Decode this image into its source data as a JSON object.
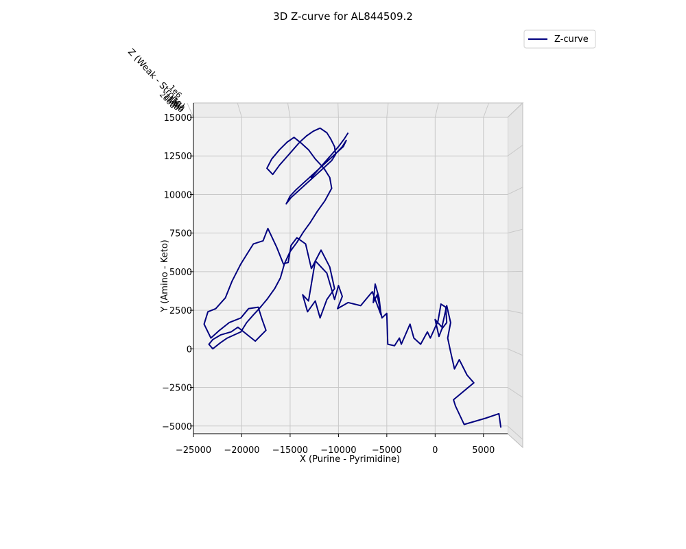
{
  "chart_data": {
    "type": "line",
    "title": "3D Z-curve for AL844509.2",
    "xlabel": "X (Purine - Pyrimidine)",
    "ylabel": "Y (Amino - Keto)",
    "zlabel": "Z (Weak - Strong)",
    "xlim": [
      -25000,
      7500
    ],
    "ylim": [
      -5500,
      15000
    ],
    "x_ticks": [
      -25000,
      -20000,
      -15000,
      -10000,
      -5000,
      0,
      5000
    ],
    "x_tick_labels": [
      "−25000",
      "−20000",
      "−15000",
      "−10000",
      "−5000",
      "0",
      "5000"
    ],
    "y_ticks": [
      -5000,
      -2500,
      0,
      2500,
      5000,
      7500,
      10000,
      12500,
      15000
    ],
    "y_tick_labels": [
      "−5000",
      "−2500",
      "0",
      "2500",
      "5000",
      "7500",
      "10000",
      "12500",
      "15000"
    ],
    "grid": true,
    "legend_position": "top-right",
    "series": [
      {
        "name": "Z-curve",
        "color": "#00007f",
        "x": [
          6800,
          6600,
          5200,
          3000,
          2100,
          1900,
          4000,
          3300,
          2500,
          2000,
          1600,
          1300,
          1600,
          1200,
          700,
          0,
          400,
          700,
          1200,
          1100,
          600,
          300,
          -500,
          -800,
          -1500,
          -2200,
          -2600,
          -3500,
          -3700,
          -4200,
          -4900,
          -5000,
          -5500,
          -6000,
          -6400,
          -6200,
          -5800,
          -5600,
          -6500,
          -7700,
          -9000,
          -10100,
          -9600,
          -10000,
          -10400,
          -11200,
          -12400,
          -13100,
          -13700,
          -13200,
          -12400,
          -11900,
          -11200,
          -10400,
          -10900,
          -11800,
          -12800,
          -13400,
          -14300,
          -14900,
          -15200,
          -15700,
          -16400,
          -17300,
          -17800,
          -18800,
          -19400,
          -20100,
          -21000,
          -21700,
          -22700,
          -23500,
          -23900,
          -23200,
          -22300,
          -21300,
          -20100,
          -19300,
          -18300,
          -17900,
          -17500,
          -18600,
          -19400,
          -20400,
          -21100,
          -22200,
          -23000,
          -23400,
          -23000,
          -22200,
          -21500,
          -20100,
          -19500,
          -18800,
          -18200,
          -17400,
          -16600,
          -16000,
          -15600,
          -15000,
          -14300,
          -13600,
          -12900,
          -12200,
          -11400,
          -10700,
          -10900,
          -11500,
          -12400,
          -13100,
          -13800,
          -14600,
          -15300,
          -16100,
          -16900,
          -17400,
          -16800,
          -16100,
          -15400,
          -14700,
          -14000,
          -13300,
          -12600,
          -11900,
          -11200,
          -10800,
          -10400,
          -10300,
          -10700,
          -11400,
          -12100,
          -12800,
          -13500,
          -14200,
          -14900,
          -15400,
          -15000,
          -14400,
          -13700,
          -13000,
          -12300,
          -11600,
          -10900,
          -10200,
          -9600,
          -9200,
          -9500,
          -10200,
          -10900,
          -11600,
          -12300,
          -12800,
          -12100,
          -11400,
          -10700,
          -10000,
          -9400,
          -9000
        ],
        "y": [
          -5100,
          -4200,
          -4500,
          -4900,
          -3700,
          -3300,
          -2200,
          -1700,
          -700,
          -1300,
          -200,
          700,
          1700,
          2800,
          1400,
          1900,
          800,
          1300,
          1700,
          2700,
          2900,
          1800,
          700,
          1100,
          300,
          700,
          1600,
          300,
          700,
          200,
          300,
          2300,
          2000,
          3500,
          3000,
          4200,
          3300,
          2200,
          3700,
          2800,
          3000,
          2600,
          3400,
          4100,
          3200,
          4900,
          5700,
          3100,
          3500,
          2400,
          3100,
          2000,
          3200,
          3900,
          5300,
          6400,
          5200,
          6800,
          7200,
          6700,
          5600,
          5500,
          6600,
          7800,
          7000,
          6800,
          6200,
          5500,
          4400,
          3300,
          2600,
          2400,
          1600,
          700,
          1200,
          1700,
          2000,
          2600,
          2700,
          1900,
          1200,
          500,
          900,
          1400,
          1100,
          900,
          600,
          300,
          0,
          400,
          700,
          1100,
          1700,
          2200,
          2600,
          3200,
          3900,
          4600,
          5500,
          6300,
          6900,
          7600,
          8200,
          8900,
          9600,
          10400,
          11100,
          11700,
          12300,
          12900,
          13300,
          13700,
          13400,
          12900,
          12300,
          11700,
          11300,
          11900,
          12400,
          12900,
          13400,
          13800,
          14100,
          14300,
          14000,
          13600,
          13100,
          12600,
          12200,
          11800,
          11400,
          11000,
          10600,
          10200,
          9800,
          9400,
          9900,
          10300,
          10700,
          11100,
          11500,
          11900,
          12300,
          12700,
          13100,
          13500,
          13100,
          12700,
          12300,
          11900,
          11500,
          11100,
          11600,
          12100,
          12600,
          13100,
          13600,
          14000
        ]
      }
    ]
  }
}
